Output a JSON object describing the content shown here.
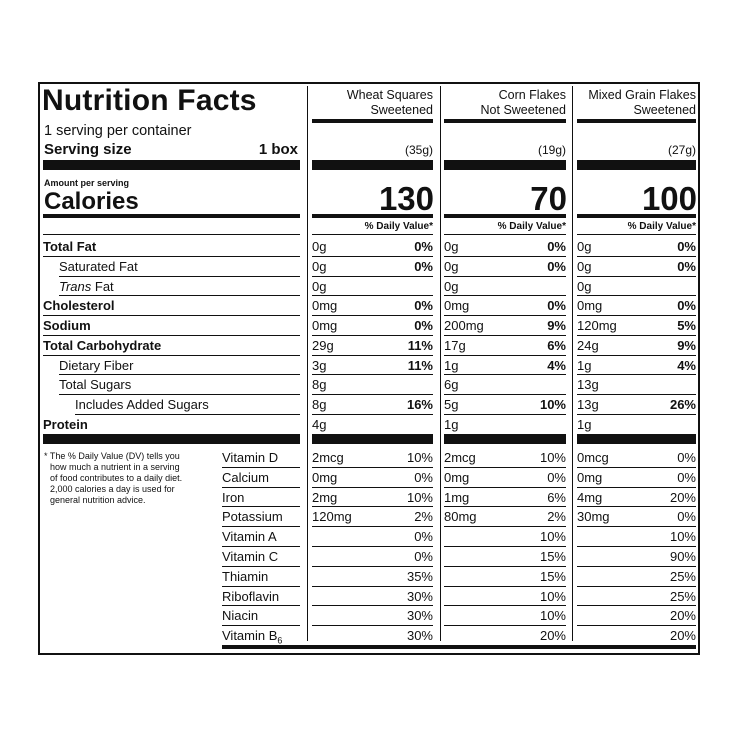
{
  "panel": {
    "title": "Nutrition Facts",
    "servings_per_container": "1 serving per container",
    "serving_size_label": "Serving size",
    "serving_size_value": "1 box",
    "amount_per_serving": "Amount per serving",
    "calories_label": "Calories",
    "dv_header": "% Daily Value*",
    "footnote": [
      "* The % Daily Value (DV) tells you",
      "how much a nutrient in a serving",
      "of food contributes to a daily diet.",
      "2,000 calories a day is used for",
      "general nutrition advice."
    ]
  },
  "products": [
    {
      "name_line1": "Wheat Squares",
      "name_line2": "Sweetened",
      "serving_grams": "(35g)",
      "calories": "130"
    },
    {
      "name_line1": "Corn Flakes",
      "name_line2": "Not Sweetened",
      "serving_grams": "(19g)",
      "calories": "70"
    },
    {
      "name_line1": "Mixed Grain Flakes",
      "name_line2": "Sweetened",
      "serving_grams": "(27g)",
      "calories": "100"
    }
  ],
  "nutrients": [
    {
      "label": "Total Fat",
      "vals": [
        [
          "0g",
          "0%"
        ],
        [
          "0g",
          "0%"
        ],
        [
          "0g",
          "0%"
        ]
      ]
    },
    {
      "label": "Saturated Fat",
      "vals": [
        [
          "0g",
          "0%"
        ],
        [
          "0g",
          "0%"
        ],
        [
          "0g",
          "0%"
        ]
      ]
    },
    {
      "label_prefix": "Trans",
      "label": " Fat",
      "vals": [
        [
          "0g",
          ""
        ],
        [
          "0g",
          ""
        ],
        [
          "0g",
          ""
        ]
      ]
    },
    {
      "label": "Cholesterol",
      "vals": [
        [
          "0mg",
          "0%"
        ],
        [
          "0mg",
          "0%"
        ],
        [
          "0mg",
          "0%"
        ]
      ]
    },
    {
      "label": "Sodium",
      "vals": [
        [
          "0mg",
          "0%"
        ],
        [
          "200mg",
          "9%"
        ],
        [
          "120mg",
          "5%"
        ]
      ]
    },
    {
      "label": "Total Carbohydrate",
      "vals": [
        [
          "29g",
          "11%"
        ],
        [
          "17g",
          "6%"
        ],
        [
          "24g",
          "9%"
        ]
      ]
    },
    {
      "label": "Dietary Fiber",
      "vals": [
        [
          "3g",
          "11%"
        ],
        [
          "1g",
          "4%"
        ],
        [
          "1g",
          "4%"
        ]
      ]
    },
    {
      "label": "Total Sugars",
      "vals": [
        [
          "8g",
          ""
        ],
        [
          "6g",
          ""
        ],
        [
          "13g",
          ""
        ]
      ]
    },
    {
      "label": "Includes Added Sugars",
      "vals": [
        [
          "8g",
          "16%"
        ],
        [
          "5g",
          "10%"
        ],
        [
          "13g",
          "26%"
        ]
      ]
    },
    {
      "label": "Protein",
      "vals": [
        [
          "4g",
          ""
        ],
        [
          "1g",
          ""
        ],
        [
          "1g",
          ""
        ]
      ]
    }
  ],
  "micronutrients": [
    {
      "label": "Vitamin D",
      "vals": [
        [
          "2mcg",
          "10%"
        ],
        [
          "2mcg",
          "10%"
        ],
        [
          "0mcg",
          "0%"
        ]
      ]
    },
    {
      "label": "Calcium",
      "vals": [
        [
          "0mg",
          "0%"
        ],
        [
          "0mg",
          "0%"
        ],
        [
          "0mg",
          "0%"
        ]
      ]
    },
    {
      "label": "Iron",
      "vals": [
        [
          "2mg",
          "10%"
        ],
        [
          "1mg",
          "6%"
        ],
        [
          "4mg",
          "20%"
        ]
      ]
    },
    {
      "label": "Potassium",
      "vals": [
        [
          "120mg",
          "2%"
        ],
        [
          "80mg",
          "2%"
        ],
        [
          "30mg",
          "0%"
        ]
      ]
    },
    {
      "label": "Vitamin A",
      "vals": [
        [
          "",
          "0%"
        ],
        [
          "",
          "10%"
        ],
        [
          "",
          "10%"
        ]
      ]
    },
    {
      "label": "Vitamin C",
      "vals": [
        [
          "",
          "0%"
        ],
        [
          "",
          "15%"
        ],
        [
          "",
          "90%"
        ]
      ]
    },
    {
      "label": "Thiamin",
      "vals": [
        [
          "",
          "35%"
        ],
        [
          "",
          "15%"
        ],
        [
          "",
          "25%"
        ]
      ]
    },
    {
      "label": "Riboflavin",
      "vals": [
        [
          "",
          "30%"
        ],
        [
          "",
          "10%"
        ],
        [
          "",
          "25%"
        ]
      ]
    },
    {
      "label": "Niacin",
      "vals": [
        [
          "",
          "30%"
        ],
        [
          "",
          "10%"
        ],
        [
          "",
          "20%"
        ]
      ]
    },
    {
      "label": "Vitamin B",
      "label_sub": "6",
      "vals": [
        [
          "",
          "30%"
        ],
        [
          "",
          "20%"
        ],
        [
          "",
          "20%"
        ]
      ]
    }
  ]
}
